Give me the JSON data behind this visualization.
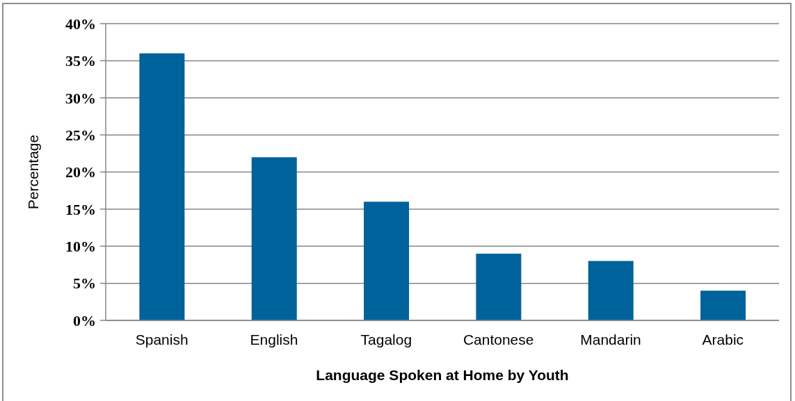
{
  "chart_data": {
    "type": "bar",
    "xlabel": "Language Spoken at Home by Youth",
    "ylabel": "Percentage",
    "categories": [
      "Spanish",
      "English",
      "Tagalog",
      "Cantonese",
      "Mandarin",
      "Arabic"
    ],
    "values": [
      36,
      22,
      16,
      9,
      8,
      4
    ],
    "color": "#00629b",
    "ylim": [
      0,
      40
    ],
    "yticks": [
      {
        "value": 0,
        "label": "0%"
      },
      {
        "value": 5,
        "label": "5%"
      },
      {
        "value": 10,
        "label": "10%"
      },
      {
        "value": 15,
        "label": "15%"
      },
      {
        "value": 20,
        "label": "20%"
      },
      {
        "value": 25,
        "label": "25%"
      },
      {
        "value": 30,
        "label": "30%"
      },
      {
        "value": 35,
        "label": "35%"
      },
      {
        "value": 40,
        "label": "40%"
      }
    ],
    "grid": "y"
  }
}
